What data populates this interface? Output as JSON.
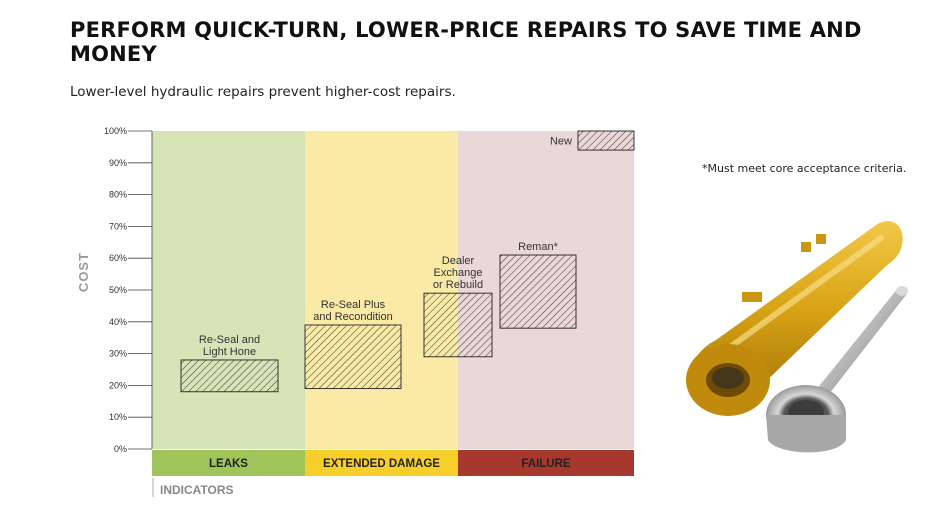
{
  "header": {
    "title": "PERFORM QUICK-TURN, LOWER-PRICE REPAIRS TO SAVE TIME AND MONEY",
    "subtitle": "Lower-level hydraulic repairs prevent higher-cost repairs."
  },
  "note": "*Must meet core acceptance criteria.",
  "image": {
    "name": "hydraulic-cylinder-photo"
  },
  "chart_data": {
    "type": "bar",
    "title": "",
    "ylabel": "COST",
    "xlabel": "INDICATORS",
    "ylim": [
      0,
      100
    ],
    "yticks": [
      "0%",
      "10%",
      "20%",
      "30%",
      "40%",
      "50%",
      "60%",
      "70%",
      "80%",
      "90%",
      "100%"
    ],
    "grid": false,
    "indicators": [
      {
        "name": "LEAKS",
        "bg": "#d6e4b8",
        "bar": "#9fc45a"
      },
      {
        "name": "EXTENDED DAMAGE",
        "bg": "#fbe9a6",
        "bar": "#f7cf2a"
      },
      {
        "name": "FAILURE",
        "bg": "#ead7d8",
        "bar": "#a7382d"
      }
    ],
    "repairs": [
      {
        "label": "Re-Seal and\nLight Hone",
        "low": 18,
        "high": 28
      },
      {
        "label": "Re-Seal Plus\nand Recondition",
        "low": 19,
        "high": 39
      },
      {
        "label": "Dealer\nExchange\nor Rebuild",
        "low": 29,
        "high": 49
      },
      {
        "label": "Reman*",
        "low": 38,
        "high": 61
      },
      {
        "label": "New",
        "low": 94,
        "high": 100
      }
    ]
  }
}
